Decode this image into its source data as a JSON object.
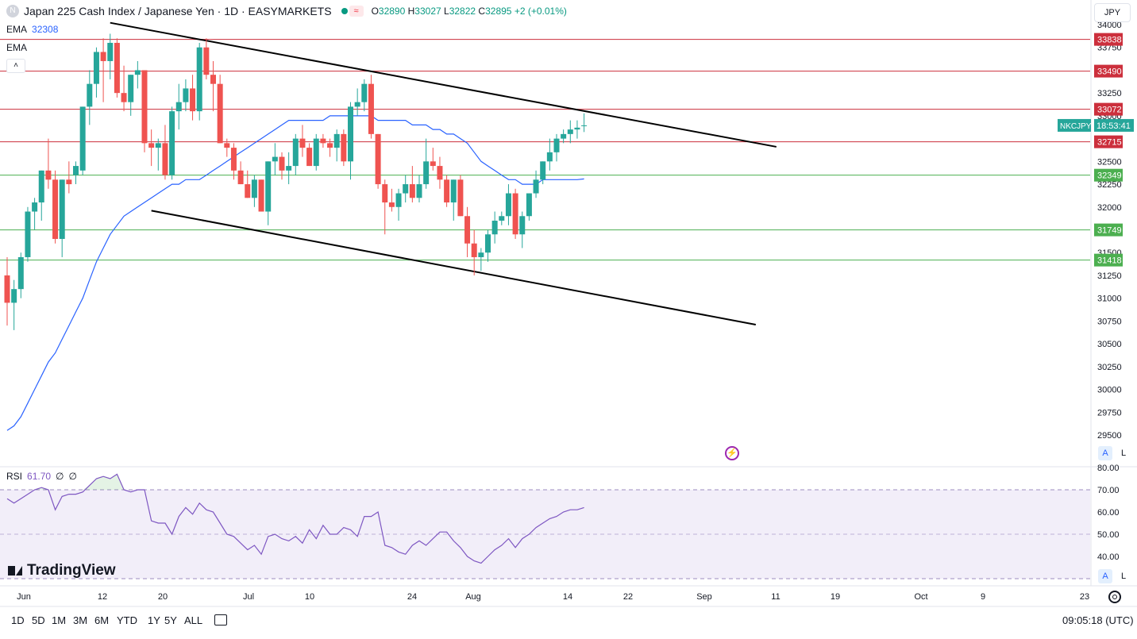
{
  "header": {
    "logo_letter": "N",
    "title": "Japan 225 Cash Index / Japanese Yen · 1D · EASYMARKETS",
    "open_label": "O",
    "open": "32890",
    "high_label": "H",
    "high": "33027",
    "low_label": "L",
    "low": "32822",
    "close_label": "C",
    "close": "32895",
    "change": "+2 (+0.01%)",
    "currency": "JPY"
  },
  "indicators": {
    "ema_label": "EMA",
    "ema_value": "32308",
    "ema2_label": "EMA",
    "collapse_glyph": "˄",
    "rsi_label": "RSI",
    "rsi_value": "61.70",
    "rsi_extra1": "∅",
    "rsi_extra2": "∅"
  },
  "price_scale": {
    "ticks": [
      "34000",
      "33750",
      "33500",
      "33250",
      "33000",
      "32750",
      "32500",
      "32250",
      "32000",
      "31750",
      "31500",
      "31250",
      "31000",
      "30750",
      "30500",
      "30250",
      "30000",
      "29750",
      "29500"
    ],
    "symbol_tag": "NKCJPY",
    "countdown": "18:53:41"
  },
  "rsi_scale": {
    "ticks": [
      "80.00",
      "70.00",
      "60.00",
      "50.00",
      "40.00"
    ]
  },
  "time_axis": {
    "labels": [
      "Jun",
      "12",
      "20",
      "Jul",
      "10",
      "24",
      "Aug",
      "14",
      "22",
      "Sep",
      "11",
      "19",
      "Oct",
      "9",
      "23"
    ]
  },
  "toolbar": {
    "ranges": [
      "1D",
      "5D",
      "1M",
      "3M",
      "6M",
      "YTD",
      "1Y",
      "5Y",
      "ALL"
    ],
    "clock": "09:05:18 (UTC)",
    "auto": "A",
    "log": "L"
  },
  "brand": {
    "name": "TradingView"
  },
  "colors": {
    "up": "#26a69a",
    "down": "#ef5350",
    "ema": "#2962ff",
    "rsi": "#7e57c2",
    "resistance": "#cc2f3c",
    "support": "#4caf50"
  },
  "chart_data": [
    {
      "type": "candlestick",
      "instrument": "Japan 225 Cash Index / Japanese Yen",
      "ylim": [
        29300,
        34050
      ],
      "candles": [
        {
          "o": 31250,
          "h": 31450,
          "l": 30700,
          "c": 30950
        },
        {
          "o": 30950,
          "h": 31200,
          "l": 30650,
          "c": 31100
        },
        {
          "o": 31100,
          "h": 31500,
          "l": 31000,
          "c": 31450
        },
        {
          "o": 31450,
          "h": 32000,
          "l": 31400,
          "c": 31950
        },
        {
          "o": 31950,
          "h": 32100,
          "l": 31750,
          "c": 32050
        },
        {
          "o": 32050,
          "h": 32400,
          "l": 31850,
          "c": 32400
        },
        {
          "o": 32400,
          "h": 32750,
          "l": 32200,
          "c": 32300
        },
        {
          "o": 32300,
          "h": 32400,
          "l": 31600,
          "c": 31650
        },
        {
          "o": 31650,
          "h": 32300,
          "l": 31450,
          "c": 32300
        },
        {
          "o": 32300,
          "h": 32500,
          "l": 32150,
          "c": 32250
        },
        {
          "o": 32350,
          "h": 32500,
          "l": 32250,
          "c": 32450
        },
        {
          "o": 32400,
          "h": 33100,
          "l": 32350,
          "c": 33100
        },
        {
          "o": 33100,
          "h": 33500,
          "l": 32900,
          "c": 33350
        },
        {
          "o": 33350,
          "h": 33750,
          "l": 33200,
          "c": 33700
        },
        {
          "o": 33700,
          "h": 33850,
          "l": 33150,
          "c": 33600
        },
        {
          "o": 33600,
          "h": 33900,
          "l": 33400,
          "c": 33800
        },
        {
          "o": 33800,
          "h": 33850,
          "l": 33200,
          "c": 33250
        },
        {
          "o": 33250,
          "h": 33550,
          "l": 33050,
          "c": 33150
        },
        {
          "o": 33150,
          "h": 33450,
          "l": 33000,
          "c": 33450
        },
        {
          "o": 33450,
          "h": 33600,
          "l": 33300,
          "c": 33500
        },
        {
          "o": 33500,
          "h": 33500,
          "l": 32600,
          "c": 32700
        },
        {
          "o": 32700,
          "h": 32850,
          "l": 32450,
          "c": 32650
        },
        {
          "o": 32650,
          "h": 32750,
          "l": 32400,
          "c": 32700
        },
        {
          "o": 32700,
          "h": 32900,
          "l": 32300,
          "c": 32350
        },
        {
          "o": 32350,
          "h": 33100,
          "l": 32300,
          "c": 33050
        },
        {
          "o": 33050,
          "h": 33350,
          "l": 32850,
          "c": 33150
        },
        {
          "o": 33150,
          "h": 33400,
          "l": 33050,
          "c": 33300
        },
        {
          "o": 33300,
          "h": 33450,
          "l": 32950,
          "c": 33050
        },
        {
          "o": 33050,
          "h": 33800,
          "l": 32950,
          "c": 33750
        },
        {
          "o": 33750,
          "h": 33850,
          "l": 33400,
          "c": 33450
        },
        {
          "o": 33450,
          "h": 33600,
          "l": 33050,
          "c": 33350
        },
        {
          "o": 33350,
          "h": 33450,
          "l": 32700,
          "c": 32700
        },
        {
          "o": 32700,
          "h": 32750,
          "l": 32550,
          "c": 32650
        },
        {
          "o": 32650,
          "h": 32700,
          "l": 32300,
          "c": 32400
        },
        {
          "o": 32400,
          "h": 32500,
          "l": 32250,
          "c": 32250
        },
        {
          "o": 32250,
          "h": 32400,
          "l": 32100,
          "c": 32100
        },
        {
          "o": 32100,
          "h": 32350,
          "l": 32000,
          "c": 32300
        },
        {
          "o": 32300,
          "h": 32300,
          "l": 31950,
          "c": 31950
        },
        {
          "o": 31950,
          "h": 32500,
          "l": 31800,
          "c": 32500
        },
        {
          "o": 32500,
          "h": 32700,
          "l": 32350,
          "c": 32550
        },
        {
          "o": 32550,
          "h": 32600,
          "l": 32300,
          "c": 32400
        },
        {
          "o": 32400,
          "h": 32600,
          "l": 32250,
          "c": 32450
        },
        {
          "o": 32450,
          "h": 32800,
          "l": 32350,
          "c": 32750
        },
        {
          "o": 32750,
          "h": 32900,
          "l": 32550,
          "c": 32650
        },
        {
          "o": 32650,
          "h": 32700,
          "l": 32450,
          "c": 32450
        },
        {
          "o": 32450,
          "h": 32800,
          "l": 32400,
          "c": 32750
        },
        {
          "o": 32750,
          "h": 32800,
          "l": 32650,
          "c": 32700
        },
        {
          "o": 32700,
          "h": 32750,
          "l": 32550,
          "c": 32650
        },
        {
          "o": 32650,
          "h": 32850,
          "l": 32500,
          "c": 32800
        },
        {
          "o": 32800,
          "h": 32850,
          "l": 32450,
          "c": 32500
        },
        {
          "o": 32500,
          "h": 33150,
          "l": 32300,
          "c": 33100
        },
        {
          "o": 33100,
          "h": 33300,
          "l": 33000,
          "c": 33150
        },
        {
          "o": 33150,
          "h": 33400,
          "l": 33050,
          "c": 33350
        },
        {
          "o": 33350,
          "h": 33450,
          "l": 32750,
          "c": 32800
        },
        {
          "o": 32800,
          "h": 32800,
          "l": 32200,
          "c": 32250
        },
        {
          "o": 32250,
          "h": 32300,
          "l": 31700,
          "c": 32050
        },
        {
          "o": 32050,
          "h": 32200,
          "l": 31950,
          "c": 32000
        },
        {
          "o": 32000,
          "h": 32200,
          "l": 31850,
          "c": 32150
        },
        {
          "o": 32150,
          "h": 32350,
          "l": 32050,
          "c": 32250
        },
        {
          "o": 32250,
          "h": 32450,
          "l": 32050,
          "c": 32100
        },
        {
          "o": 32100,
          "h": 32350,
          "l": 32050,
          "c": 32250
        },
        {
          "o": 32250,
          "h": 32750,
          "l": 32200,
          "c": 32500
        },
        {
          "o": 32500,
          "h": 32650,
          "l": 32400,
          "c": 32450
        },
        {
          "o": 32450,
          "h": 32550,
          "l": 32200,
          "c": 32300
        },
        {
          "o": 32300,
          "h": 32350,
          "l": 32000,
          "c": 32050
        },
        {
          "o": 32050,
          "h": 32300,
          "l": 31850,
          "c": 32300
        },
        {
          "o": 32300,
          "h": 32350,
          "l": 31900,
          "c": 31900
        },
        {
          "o": 31900,
          "h": 32000,
          "l": 31450,
          "c": 31600
        },
        {
          "o": 31600,
          "h": 31750,
          "l": 31250,
          "c": 31450
        },
        {
          "o": 31450,
          "h": 31550,
          "l": 31300,
          "c": 31500
        },
        {
          "o": 31500,
          "h": 31750,
          "l": 31400,
          "c": 31700
        },
        {
          "o": 31700,
          "h": 31950,
          "l": 31600,
          "c": 31850
        },
        {
          "o": 31850,
          "h": 31950,
          "l": 31800,
          "c": 31900
        },
        {
          "o": 31900,
          "h": 32250,
          "l": 31800,
          "c": 32150
        },
        {
          "o": 32150,
          "h": 32200,
          "l": 31650,
          "c": 31700
        },
        {
          "o": 31700,
          "h": 31950,
          "l": 31550,
          "c": 31900
        },
        {
          "o": 31900,
          "h": 32150,
          "l": 31850,
          "c": 32150
        },
        {
          "o": 32150,
          "h": 32400,
          "l": 32100,
          "c": 32300
        },
        {
          "o": 32300,
          "h": 32500,
          "l": 32250,
          "c": 32500
        },
        {
          "o": 32500,
          "h": 32750,
          "l": 32400,
          "c": 32600
        },
        {
          "o": 32600,
          "h": 32800,
          "l": 32500,
          "c": 32750
        },
        {
          "o": 32750,
          "h": 32850,
          "l": 32700,
          "c": 32800
        },
        {
          "o": 32800,
          "h": 32950,
          "l": 32700,
          "c": 32850
        },
        {
          "o": 32850,
          "h": 32950,
          "l": 32750,
          "c": 32870
        },
        {
          "o": 32890,
          "h": 33027,
          "l": 32822,
          "c": 32895
        }
      ],
      "ema": [
        29550,
        29600,
        29700,
        29850,
        30000,
        30150,
        30300,
        30400,
        30550,
        30700,
        30850,
        31000,
        31200,
        31400,
        31550,
        31700,
        31800,
        31900,
        31950,
        32000,
        32050,
        32100,
        32150,
        32200,
        32250,
        32250,
        32300,
        32300,
        32300,
        32350,
        32400,
        32450,
        32500,
        32550,
        32600,
        32650,
        32700,
        32750,
        32800,
        32850,
        32900,
        32950,
        32950,
        32950,
        32950,
        32950,
        32950,
        33000,
        33000,
        33000,
        33000,
        33000,
        33000,
        33000,
        32950,
        32950,
        32950,
        32950,
        32950,
        32900,
        32900,
        32900,
        32850,
        32850,
        32800,
        32800,
        32750,
        32700,
        32600,
        32500,
        32450,
        32400,
        32350,
        32300,
        32300,
        32250,
        32250,
        32250,
        32300,
        32300,
        32300,
        32300,
        32300,
        32300,
        32308
      ],
      "ema_start_index": 0,
      "levels": [
        {
          "value": 33838,
          "kind": "resistance"
        },
        {
          "value": 33490,
          "kind": "resistance"
        },
        {
          "value": 33072,
          "kind": "resistance"
        },
        {
          "value": 32715,
          "kind": "resistance"
        },
        {
          "value": 32349,
          "kind": "support"
        },
        {
          "value": 31749,
          "kind": "support"
        },
        {
          "value": 31418,
          "kind": "support"
        }
      ],
      "trendlines": [
        {
          "from": {
            "bar": 15,
            "price": 34020
          },
          "to": {
            "bar": 112,
            "price": 32660
          }
        },
        {
          "from": {
            "bar": 21,
            "price": 31960
          },
          "to": {
            "bar": 109,
            "price": 30710
          }
        }
      ],
      "last_price": 32895
    },
    {
      "type": "line",
      "name": "RSI",
      "ylim": [
        35,
        82
      ],
      "band": [
        30,
        70
      ],
      "midline": 50,
      "values": [
        66,
        64,
        66,
        68,
        70,
        71,
        70,
        61,
        67,
        68,
        68,
        69,
        72,
        75,
        76,
        75,
        77,
        70,
        69,
        70,
        70,
        56,
        55,
        55,
        50,
        58,
        62,
        59,
        64,
        61,
        60,
        55,
        50,
        49,
        46,
        43,
        45,
        41,
        49,
        50,
        48,
        47,
        49,
        46,
        52,
        48,
        54,
        50,
        50,
        53,
        52,
        49,
        58,
        58,
        60,
        45,
        44,
        42,
        41,
        45,
        47,
        45,
        48,
        51,
        51,
        47,
        44,
        40,
        38,
        37,
        40,
        43,
        45,
        48,
        44,
        48,
        50,
        53,
        55,
        57,
        58,
        60,
        61,
        61,
        62
      ]
    }
  ]
}
